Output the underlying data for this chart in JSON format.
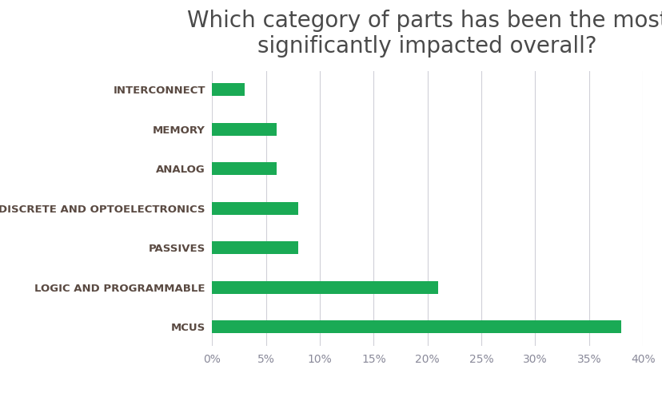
{
  "title": "Which category of parts has been the most\nsignificantly impacted overall?",
  "categories": [
    "MCUS",
    "LOGIC AND PROGRAMMABLE",
    "PASSIVES",
    "DISCRETE AND OPTOELECTRONICS",
    "ANALOG",
    "MEMORY",
    "INTERCONNECT"
  ],
  "values": [
    38,
    21,
    8,
    8,
    6,
    6,
    3
  ],
  "bar_color": "#1aaa55",
  "background_color": "#FFFFFF",
  "title_color": "#4a4a4a",
  "label_color": "#5a4a42",
  "tick_color": "#8a8a9a",
  "grid_color": "#d0d0d8",
  "xlim": [
    0,
    40
  ],
  "xticks": [
    0,
    5,
    10,
    15,
    20,
    25,
    30,
    35,
    40
  ],
  "title_fontsize": 20,
  "label_fontsize": 9.5,
  "tick_fontsize": 10,
  "bar_height": 0.32
}
